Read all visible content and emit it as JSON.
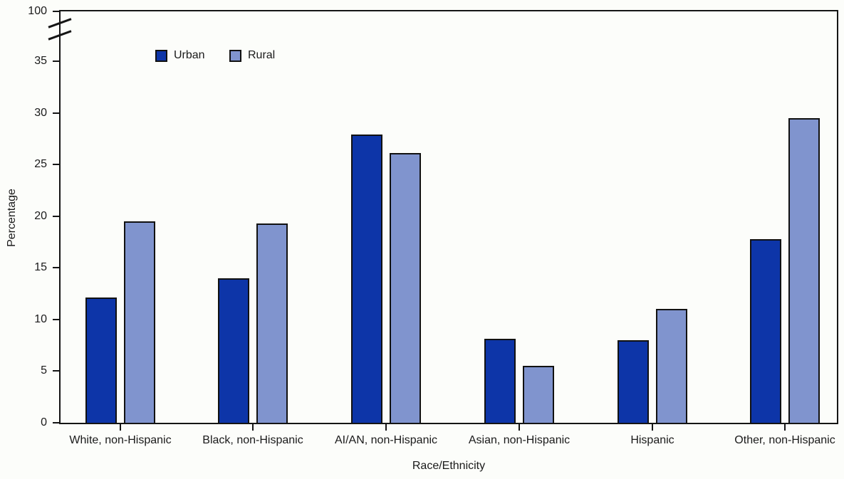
{
  "figure": {
    "background_color": "#fcfdfa",
    "frame_color": "#151515",
    "text_color": "#1a1a1a"
  },
  "chart_data": {
    "type": "bar",
    "title": "",
    "xlabel": "Race/Ethnicity",
    "ylabel": "Percentage",
    "categories": [
      "White, non-Hispanic",
      "Black, non-Hispanic",
      "AI/AN, non-Hispanic",
      "Asian, non-Hispanic",
      "Hispanic",
      "Other, non-Hispanic"
    ],
    "series": [
      {
        "name": "Urban",
        "color": "#0D35A8",
        "values": [
          12.1,
          14.0,
          27.9,
          8.1,
          8.0,
          17.8
        ]
      },
      {
        "name": "Rural",
        "color": "#8094CE",
        "values": [
          19.5,
          19.3,
          26.1,
          5.5,
          11.0,
          29.5
        ]
      }
    ],
    "y_axis": {
      "ticks": [
        0,
        5,
        10,
        15,
        20,
        25,
        30,
        35
      ],
      "broken_top_tick": 100,
      "axis_break": true,
      "units": "percent"
    },
    "x_axis": {
      "tick_marks": true
    },
    "legend": {
      "position": "top-left-inside",
      "entries": [
        "Urban",
        "Rural"
      ]
    },
    "grid": false
  }
}
